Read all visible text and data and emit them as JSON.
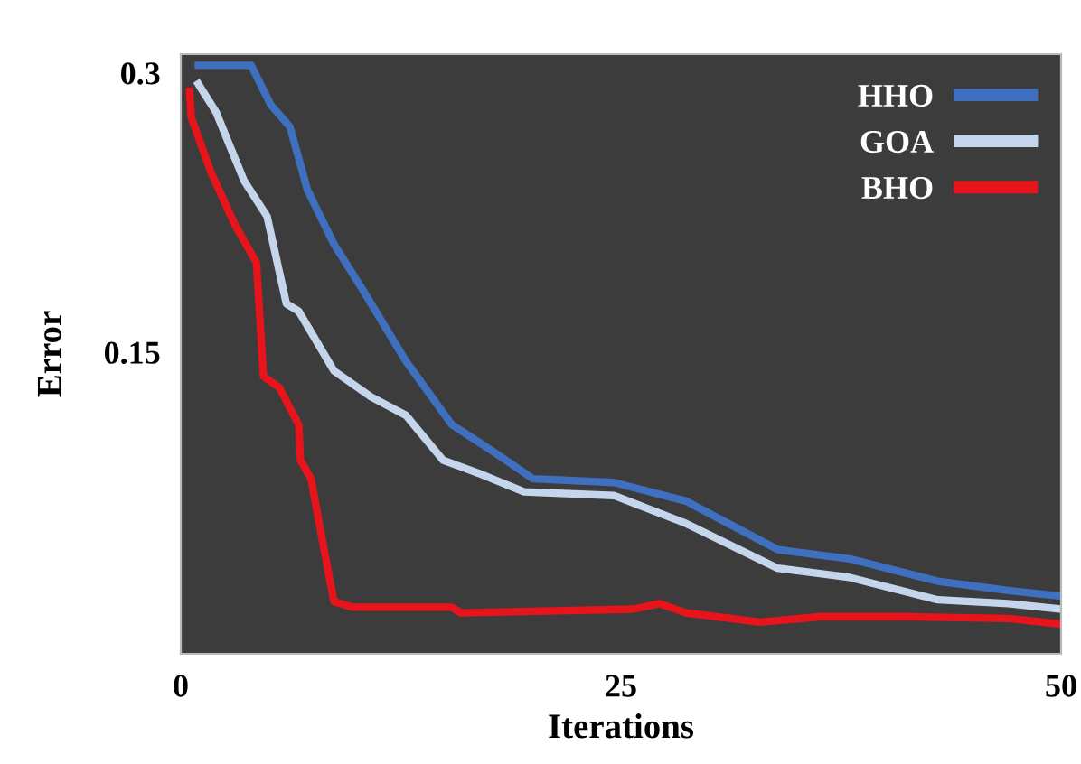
{
  "chart_data": {
    "type": "line",
    "xlabel": "Iterations",
    "ylabel": "Error",
    "xlim": [
      0,
      50
    ],
    "ylim": [
      -0.012,
      0.31
    ],
    "xticks": [
      0,
      25,
      50
    ],
    "yticks": [
      0.15,
      0.3
    ],
    "legend": "top right",
    "line_style": "solid",
    "series": [
      {
        "name": "HHO",
        "color": "#3f6fbf",
        "x": [
          1,
          4,
          5.1,
          6.2,
          7.2,
          8.7,
          10.3,
          12.8,
          15.4,
          18,
          20,
          24.6,
          28.7,
          33.9,
          38,
          43,
          47,
          50
        ],
        "values": [
          0.304,
          0.304,
          0.283,
          0.271,
          0.237,
          0.208,
          0.184,
          0.145,
          0.111,
          0.095,
          0.082,
          0.08,
          0.07,
          0.044,
          0.039,
          0.027,
          0.022,
          0.019
        ]
      },
      {
        "name": "GOA",
        "color": "#c5d5ec",
        "x": [
          1,
          2,
          3.6,
          4.9,
          6,
          6.7,
          8.7,
          10.8,
          12.8,
          14.9,
          16.9,
          19.5,
          24.6,
          28.7,
          33.9,
          38,
          43,
          47,
          50
        ],
        "values": [
          0.294,
          0.279,
          0.242,
          0.223,
          0.176,
          0.172,
          0.14,
          0.126,
          0.116,
          0.092,
          0.085,
          0.075,
          0.073,
          0.058,
          0.034,
          0.029,
          0.017,
          0.015,
          0.012
        ]
      },
      {
        "name": "BHO",
        "color": "#e8141c",
        "x": [
          0.5,
          0.6,
          1.7,
          3.1,
          4.3,
          4.7,
          5.6,
          6.7,
          6.8,
          7.4,
          8,
          8.7,
          9.8,
          15.4,
          15.9,
          25.7,
          27.2,
          28.7,
          32.9,
          36.4,
          41,
          47,
          50
        ],
        "values": [
          0.29,
          0.276,
          0.247,
          0.218,
          0.198,
          0.137,
          0.131,
          0.111,
          0.092,
          0.082,
          0.051,
          0.016,
          0.013,
          0.013,
          0.01,
          0.012,
          0.015,
          0.01,
          0.005,
          0.008,
          0.008,
          0.007,
          0.004
        ]
      }
    ]
  }
}
